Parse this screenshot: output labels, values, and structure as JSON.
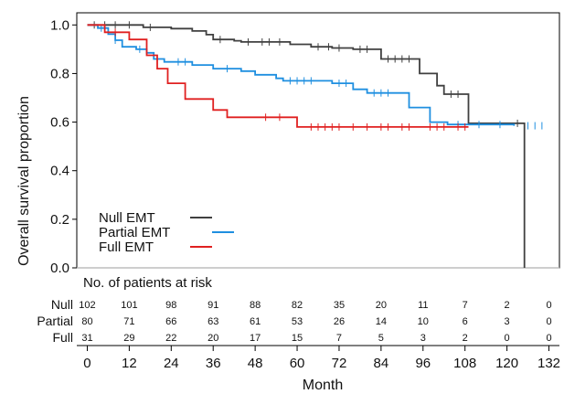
{
  "chart_data": {
    "type": "line",
    "step": true,
    "xlabel": "Month",
    "ylabel": "Overall survival proportion",
    "xlim": [
      -3,
      135
    ],
    "ylim": [
      0,
      1.05
    ],
    "x_ticks": [
      0,
      12,
      24,
      36,
      48,
      60,
      72,
      84,
      96,
      108,
      120,
      132
    ],
    "y_ticks": [
      "0.0",
      "0.2",
      "0.4",
      "0.6",
      "0.8",
      "1.0"
    ],
    "legend_position": "lower-left",
    "series": [
      {
        "name": "Null EMT",
        "color": "#404040",
        "steps": [
          [
            0,
            1.0
          ],
          [
            16,
            0.99
          ],
          [
            24,
            0.985
          ],
          [
            30,
            0.975
          ],
          [
            34,
            0.96
          ],
          [
            36,
            0.94
          ],
          [
            42,
            0.935
          ],
          [
            44,
            0.93
          ],
          [
            58,
            0.92
          ],
          [
            64,
            0.91
          ],
          [
            70,
            0.905
          ],
          [
            76,
            0.9
          ],
          [
            84,
            0.86
          ],
          [
            95,
            0.8
          ],
          [
            100,
            0.75
          ],
          [
            102,
            0.715
          ],
          [
            109,
            0.595
          ],
          [
            125,
            0.0
          ]
        ],
        "censor_x": [
          2,
          5,
          8,
          12,
          18,
          38,
          46,
          50,
          52,
          55,
          66,
          69,
          72,
          78,
          80,
          86,
          88,
          90,
          92,
          104,
          106,
          123
        ]
      },
      {
        "name": "Partial EMT",
        "color": "#1f8fe0",
        "steps": [
          [
            0,
            1.0
          ],
          [
            3,
            0.987
          ],
          [
            6,
            0.962
          ],
          [
            8,
            0.937
          ],
          [
            10,
            0.91
          ],
          [
            14,
            0.9
          ],
          [
            17,
            0.885
          ],
          [
            19,
            0.86
          ],
          [
            22,
            0.848
          ],
          [
            30,
            0.835
          ],
          [
            36,
            0.82
          ],
          [
            44,
            0.81
          ],
          [
            48,
            0.795
          ],
          [
            54,
            0.78
          ],
          [
            56,
            0.77
          ],
          [
            70,
            0.76
          ],
          [
            76,
            0.735
          ],
          [
            80,
            0.72
          ],
          [
            92,
            0.66
          ],
          [
            98,
            0.6
          ],
          [
            103,
            0.59
          ],
          [
            122,
            0.585
          ]
        ],
        "censor_x": [
          4,
          8,
          15,
          26,
          28,
          40,
          58,
          60,
          62,
          64,
          72,
          74,
          82,
          84,
          86,
          106,
          112,
          118,
          126,
          128,
          130
        ]
      },
      {
        "name": "Full EMT",
        "color": "#e02020",
        "steps": [
          [
            0,
            1.0
          ],
          [
            5,
            0.97
          ],
          [
            12,
            0.94
          ],
          [
            17,
            0.875
          ],
          [
            20,
            0.82
          ],
          [
            23,
            0.76
          ],
          [
            28,
            0.695
          ],
          [
            36,
            0.65
          ],
          [
            40,
            0.62
          ],
          [
            60,
            0.58
          ],
          [
            109,
            0.58
          ]
        ],
        "censor_x": [
          8,
          51,
          55,
          64,
          66,
          68,
          70,
          72,
          76,
          80,
          84,
          86,
          90,
          92,
          98,
          100,
          102,
          106,
          108
        ]
      }
    ],
    "risk_table": {
      "title": "No. of patients at risk",
      "times": [
        0,
        12,
        24,
        36,
        48,
        60,
        72,
        84,
        96,
        108,
        120,
        132
      ],
      "rows": [
        {
          "label": "Null",
          "values": [
            "102",
            "101",
            "98",
            "91",
            "88",
            "82",
            "35",
            "20",
            "11",
            "7",
            "2",
            "0"
          ]
        },
        {
          "label": "Partial",
          "values": [
            "80",
            "71",
            "66",
            "63",
            "61",
            "53",
            "26",
            "14",
            "10",
            "6",
            "3",
            "0"
          ]
        },
        {
          "label": "Full",
          "values": [
            "31",
            "29",
            "22",
            "20",
            "17",
            "15",
            "7",
            "5",
            "3",
            "2",
            "0",
            "0"
          ]
        }
      ]
    }
  }
}
